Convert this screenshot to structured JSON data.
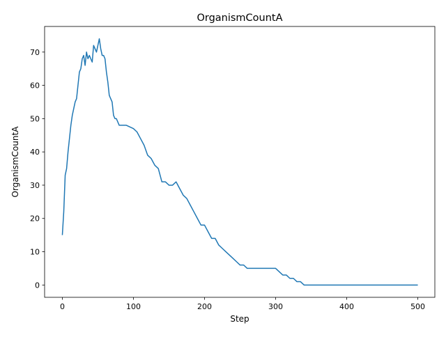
{
  "chart_data": {
    "type": "line",
    "title": "OrganismCountA",
    "xlabel": "Step",
    "ylabel": "OrganismCountA",
    "xlim": [
      -24.95,
      523.95
    ],
    "ylim": [
      -3.7,
      77.7
    ],
    "xticks": [
      0,
      100,
      200,
      300,
      400,
      500
    ],
    "yticks": [
      0,
      10,
      20,
      30,
      40,
      50,
      60,
      70
    ],
    "grid": false,
    "legend": "none",
    "series": [
      {
        "color": "#1f77b4",
        "x": [
          0,
          2,
          4,
          6,
          8,
          10,
          12,
          14,
          16,
          18,
          20,
          22,
          24,
          26,
          28,
          30,
          32,
          34,
          36,
          38,
          40,
          42,
          44,
          46,
          48,
          50,
          52,
          54,
          56,
          58,
          60,
          62,
          64,
          66,
          68,
          70,
          72,
          74,
          76,
          80,
          85,
          90,
          100,
          105,
          110,
          115,
          120,
          125,
          130,
          135,
          140,
          145,
          150,
          155,
          160,
          165,
          170,
          175,
          180,
          185,
          190,
          195,
          200,
          205,
          210,
          215,
          220,
          225,
          230,
          235,
          240,
          245,
          250,
          255,
          260,
          270,
          280,
          290,
          300,
          305,
          310,
          315,
          320,
          325,
          330,
          335,
          340,
          350,
          400,
          450,
          500
        ],
        "y": [
          15,
          22,
          33,
          35,
          40,
          44,
          48,
          51,
          53,
          55,
          56,
          60,
          64,
          65,
          68,
          69,
          66,
          70,
          68,
          69,
          68,
          67,
          72,
          71,
          70,
          72,
          74,
          71,
          69,
          69,
          68,
          64,
          61,
          57,
          56,
          55,
          51,
          50,
          50,
          48,
          48,
          48,
          47,
          46,
          44,
          42,
          39,
          38,
          36,
          35,
          31,
          31,
          30,
          30,
          31,
          29,
          27,
          26,
          24,
          22,
          20,
          18,
          18,
          16,
          14,
          14,
          12,
          11,
          10,
          9,
          8,
          7,
          6,
          6,
          5,
          5,
          5,
          5,
          5,
          4,
          3,
          3,
          2,
          2,
          1,
          1,
          0,
          0,
          0,
          0,
          0
        ]
      }
    ]
  }
}
